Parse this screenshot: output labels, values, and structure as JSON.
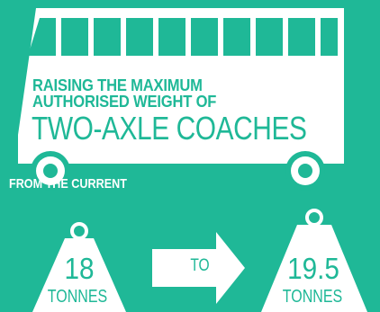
{
  "headline": {
    "line1": "RAISING THE MAXIMUM",
    "line2": "AUTHORISED WEIGHT OF",
    "line3": "TWO-AXLE COACHES"
  },
  "from_label": "FROM THE CURRENT",
  "current_weight": {
    "value": "18",
    "unit": "TONNES"
  },
  "connector": "TO",
  "new_weight": {
    "value": "19.5",
    "unit": "TONNES"
  },
  "colors": {
    "background": "#1fb897",
    "shape": "#ffffff",
    "text": "#1fb897"
  },
  "icons": [
    "coach-icon",
    "weight-icon",
    "arrow-right-icon"
  ]
}
